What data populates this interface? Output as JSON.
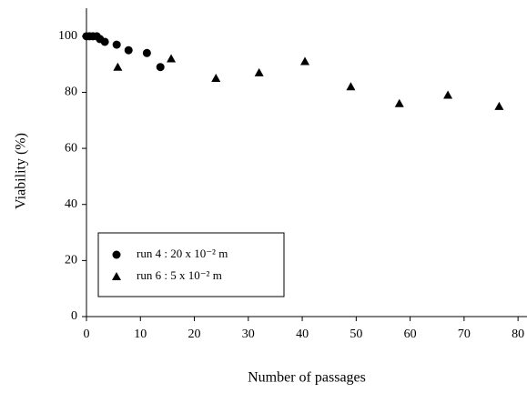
{
  "chart_data": {
    "type": "scatter",
    "x_label": "Number of passages",
    "y_label": "Viability (%)",
    "xlim": [
      0,
      82
    ],
    "xticks": [
      0,
      10,
      20,
      30,
      40,
      50,
      60,
      70,
      80
    ],
    "ylim": [
      0,
      110
    ],
    "yticks": [
      0,
      20,
      40,
      60,
      80,
      100
    ],
    "legend_position": "lower left",
    "series": [
      {
        "name": "run 4 : 20 x 10⁻² m",
        "marker": "circle",
        "color": "#000000",
        "x": [
          0,
          0.6,
          1.2,
          1.9,
          2.5,
          3.4,
          5.6,
          7.8,
          11.2,
          13.7
        ],
        "values": [
          100,
          100,
          100,
          100,
          99,
          98,
          97,
          95,
          94,
          89
        ]
      },
      {
        "name": "run 6 : 5 x 10⁻² m",
        "marker": "triangle",
        "color": "#000000",
        "x": [
          5.8,
          15.7,
          24,
          32,
          40.5,
          49,
          58,
          67,
          76.5
        ],
        "values": [
          89,
          92,
          85,
          87,
          91,
          82,
          76,
          79,
          75
        ]
      }
    ]
  }
}
